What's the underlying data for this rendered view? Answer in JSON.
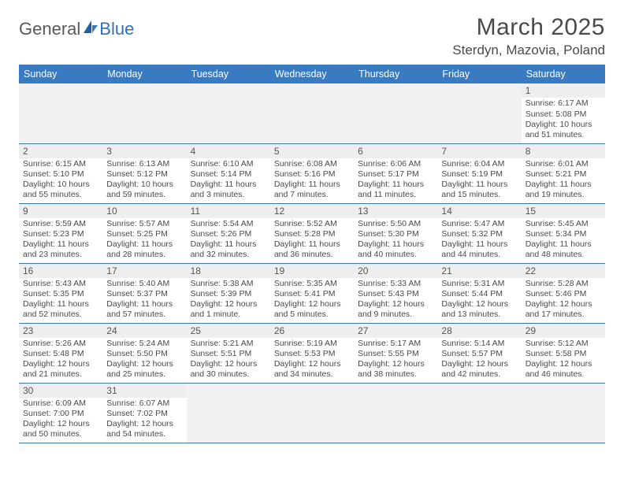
{
  "logo": {
    "text1": "General",
    "text2": "Blue"
  },
  "title": "March 2025",
  "location": "Sterdyn, Mazovia, Poland",
  "colors": {
    "header_bg": "#3a7ac0",
    "header_text": "#ffffff",
    "daynum_bg": "#eeeeee",
    "border": "#3a7ac0",
    "logo_blue": "#2f71b8",
    "text": "#4a4a4a"
  },
  "day_headers": [
    "Sunday",
    "Monday",
    "Tuesday",
    "Wednesday",
    "Thursday",
    "Friday",
    "Saturday"
  ],
  "weeks": [
    [
      null,
      null,
      null,
      null,
      null,
      null,
      {
        "n": "1",
        "sr": "6:17 AM",
        "ss": "5:08 PM",
        "dl": "10 hours and 51 minutes."
      }
    ],
    [
      {
        "n": "2",
        "sr": "6:15 AM",
        "ss": "5:10 PM",
        "dl": "10 hours and 55 minutes."
      },
      {
        "n": "3",
        "sr": "6:13 AM",
        "ss": "5:12 PM",
        "dl": "10 hours and 59 minutes."
      },
      {
        "n": "4",
        "sr": "6:10 AM",
        "ss": "5:14 PM",
        "dl": "11 hours and 3 minutes."
      },
      {
        "n": "5",
        "sr": "6:08 AM",
        "ss": "5:16 PM",
        "dl": "11 hours and 7 minutes."
      },
      {
        "n": "6",
        "sr": "6:06 AM",
        "ss": "5:17 PM",
        "dl": "11 hours and 11 minutes."
      },
      {
        "n": "7",
        "sr": "6:04 AM",
        "ss": "5:19 PM",
        "dl": "11 hours and 15 minutes."
      },
      {
        "n": "8",
        "sr": "6:01 AM",
        "ss": "5:21 PM",
        "dl": "11 hours and 19 minutes."
      }
    ],
    [
      {
        "n": "9",
        "sr": "5:59 AM",
        "ss": "5:23 PM",
        "dl": "11 hours and 23 minutes."
      },
      {
        "n": "10",
        "sr": "5:57 AM",
        "ss": "5:25 PM",
        "dl": "11 hours and 28 minutes."
      },
      {
        "n": "11",
        "sr": "5:54 AM",
        "ss": "5:26 PM",
        "dl": "11 hours and 32 minutes."
      },
      {
        "n": "12",
        "sr": "5:52 AM",
        "ss": "5:28 PM",
        "dl": "11 hours and 36 minutes."
      },
      {
        "n": "13",
        "sr": "5:50 AM",
        "ss": "5:30 PM",
        "dl": "11 hours and 40 minutes."
      },
      {
        "n": "14",
        "sr": "5:47 AM",
        "ss": "5:32 PM",
        "dl": "11 hours and 44 minutes."
      },
      {
        "n": "15",
        "sr": "5:45 AM",
        "ss": "5:34 PM",
        "dl": "11 hours and 48 minutes."
      }
    ],
    [
      {
        "n": "16",
        "sr": "5:43 AM",
        "ss": "5:35 PM",
        "dl": "11 hours and 52 minutes."
      },
      {
        "n": "17",
        "sr": "5:40 AM",
        "ss": "5:37 PM",
        "dl": "11 hours and 57 minutes."
      },
      {
        "n": "18",
        "sr": "5:38 AM",
        "ss": "5:39 PM",
        "dl": "12 hours and 1 minute."
      },
      {
        "n": "19",
        "sr": "5:35 AM",
        "ss": "5:41 PM",
        "dl": "12 hours and 5 minutes."
      },
      {
        "n": "20",
        "sr": "5:33 AM",
        "ss": "5:43 PM",
        "dl": "12 hours and 9 minutes."
      },
      {
        "n": "21",
        "sr": "5:31 AM",
        "ss": "5:44 PM",
        "dl": "12 hours and 13 minutes."
      },
      {
        "n": "22",
        "sr": "5:28 AM",
        "ss": "5:46 PM",
        "dl": "12 hours and 17 minutes."
      }
    ],
    [
      {
        "n": "23",
        "sr": "5:26 AM",
        "ss": "5:48 PM",
        "dl": "12 hours and 21 minutes."
      },
      {
        "n": "24",
        "sr": "5:24 AM",
        "ss": "5:50 PM",
        "dl": "12 hours and 25 minutes."
      },
      {
        "n": "25",
        "sr": "5:21 AM",
        "ss": "5:51 PM",
        "dl": "12 hours and 30 minutes."
      },
      {
        "n": "26",
        "sr": "5:19 AM",
        "ss": "5:53 PM",
        "dl": "12 hours and 34 minutes."
      },
      {
        "n": "27",
        "sr": "5:17 AM",
        "ss": "5:55 PM",
        "dl": "12 hours and 38 minutes."
      },
      {
        "n": "28",
        "sr": "5:14 AM",
        "ss": "5:57 PM",
        "dl": "12 hours and 42 minutes."
      },
      {
        "n": "29",
        "sr": "5:12 AM",
        "ss": "5:58 PM",
        "dl": "12 hours and 46 minutes."
      }
    ],
    [
      {
        "n": "30",
        "sr": "6:09 AM",
        "ss": "7:00 PM",
        "dl": "12 hours and 50 minutes."
      },
      {
        "n": "31",
        "sr": "6:07 AM",
        "ss": "7:02 PM",
        "dl": "12 hours and 54 minutes."
      },
      null,
      null,
      null,
      null,
      null
    ]
  ],
  "labels": {
    "sunrise": "Sunrise:",
    "sunset": "Sunset:",
    "daylight": "Daylight:"
  }
}
